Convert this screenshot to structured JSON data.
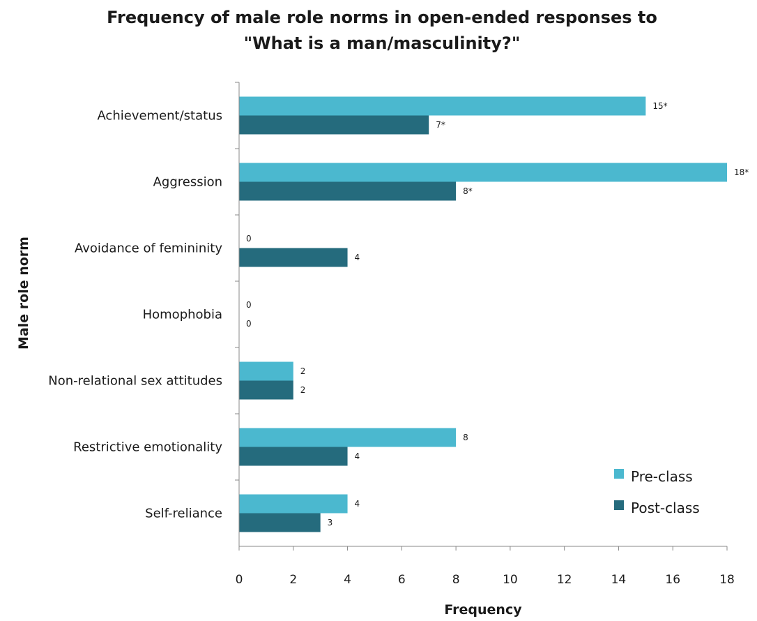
{
  "chart_data": {
    "type": "bar",
    "orientation": "horizontal",
    "title_line1": "Frequency of male role norms in open-ended responses to",
    "title_line2": "\"What is a man/masculinity?\"",
    "xlabel": "Frequency",
    "ylabel": "Male role norm",
    "xlim": [
      0,
      18
    ],
    "xticks": [
      "0",
      "2",
      "4",
      "6",
      "8",
      "10",
      "12",
      "14",
      "16",
      "18"
    ],
    "grid": false,
    "legend_position": "bottom-right",
    "categories": [
      "Achievement/status",
      "Aggression",
      "Avoidance of femininity",
      "Homophobia",
      "Non-relational sex attitudes",
      "Restrictive emotionality",
      "Self-reliance"
    ],
    "series": [
      {
        "name": "Pre-class",
        "color": "#4bb8cf",
        "values": [
          15,
          18,
          0,
          0,
          2,
          8,
          4
        ],
        "labels": [
          "15*",
          "18*",
          "0",
          "0",
          "2",
          "8",
          "4"
        ]
      },
      {
        "name": "Post-class",
        "color": "#256b7d",
        "values": [
          7,
          8,
          4,
          0,
          2,
          4,
          3
        ],
        "labels": [
          "7*",
          "8*",
          "4",
          "0",
          "2",
          "4",
          "3"
        ]
      }
    ]
  }
}
